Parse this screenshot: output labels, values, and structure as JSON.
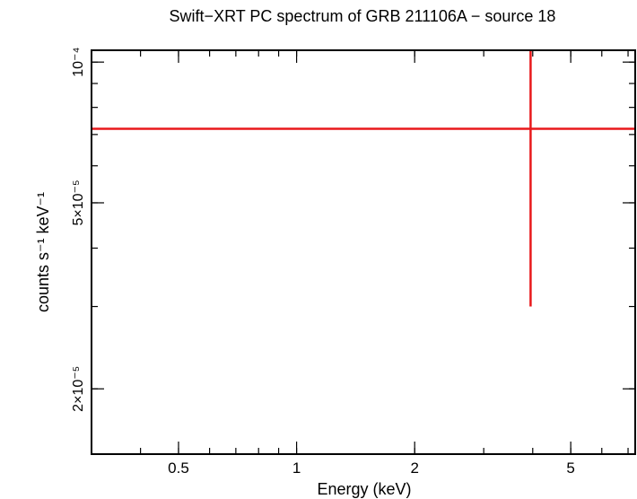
{
  "chart_data": {
    "type": "scatter",
    "title": "Swift−XRT PC spectrum of GRB 211106A − source 18",
    "xlabel": "Energy (keV)",
    "ylabel": "counts s⁻¹ keV⁻¹",
    "x_scale": "log",
    "y_scale": "log",
    "xlim": [
      0.3,
      7.3
    ],
    "ylim": [
      1.45e-05,
      0.000106
    ],
    "x_ticks": [
      {
        "value": 0.5,
        "label": "0.5"
      },
      {
        "value": 1,
        "label": "1"
      },
      {
        "value": 2,
        "label": "2"
      },
      {
        "value": 5,
        "label": "5"
      }
    ],
    "y_ticks": [
      {
        "value": 2e-05,
        "label": "2×10⁻⁵"
      },
      {
        "value": 5e-05,
        "label": "5×10⁻⁵"
      },
      {
        "value": 0.0001,
        "label": "10⁻⁴"
      }
    ],
    "grid": false,
    "series": [
      {
        "color": "#e8191b",
        "points": [
          {
            "x": 3.95,
            "x_low": 0.3,
            "x_high": 7.3,
            "y": 7.2e-05,
            "y_low": 3e-05,
            "y_high": 0.000106
          }
        ]
      }
    ]
  }
}
